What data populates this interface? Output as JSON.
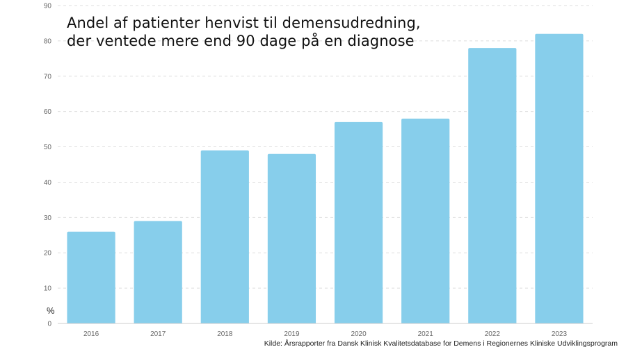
{
  "title": {
    "line1": "Andel af patienter henvist til demensudredning,",
    "line2": "der ventede mere end 90 dage på en diagnose"
  },
  "source": "Kilde: Årsrapporter fra Dansk Klinisk Kvalitetsdatabase for Demens i Regionernes Kliniske Udviklingsprogram",
  "colors": {
    "bar": "#87ceeb",
    "grid": "#dddddd",
    "axis": "#cccccc",
    "tick_text": "#666666"
  },
  "chart_data": {
    "type": "bar",
    "title": "Andel af patienter henvist til demensudredning, der ventede mere end 90 dage på en diagnose",
    "xlabel": "",
    "ylabel": "%",
    "categories": [
      "2016",
      "2017",
      "2018",
      "2019",
      "2020",
      "2021",
      "2022",
      "2023"
    ],
    "values": [
      26,
      29,
      49,
      48,
      57,
      58,
      78,
      82
    ],
    "ylim": [
      0,
      90
    ],
    "yticks": [
      0,
      10,
      20,
      30,
      40,
      50,
      60,
      70,
      80,
      90
    ],
    "grid": true,
    "legend": "none"
  }
}
